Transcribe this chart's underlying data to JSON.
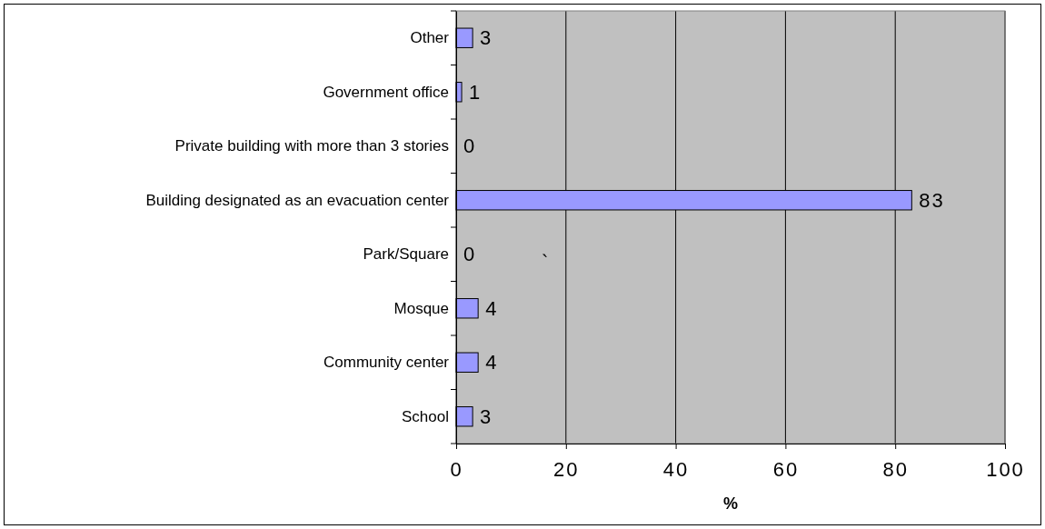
{
  "chart_data": {
    "type": "bar",
    "orientation": "horizontal",
    "xlabel": "%",
    "categories": [
      "Other",
      "Government office",
      "Private building with more than 3 stories",
      "Building designated as an evacuation center",
      "Park/Square",
      "Mosque",
      "Community center",
      "School"
    ],
    "values": [
      3,
      1,
      0,
      83,
      0,
      4,
      4,
      3
    ],
    "color": "#9999ff",
    "xlim": [
      0,
      100
    ],
    "xticks": [
      0,
      20,
      40,
      60,
      80,
      100
    ],
    "grid": "x",
    "data_labels": true,
    "annotations": [
      "`"
    ]
  }
}
